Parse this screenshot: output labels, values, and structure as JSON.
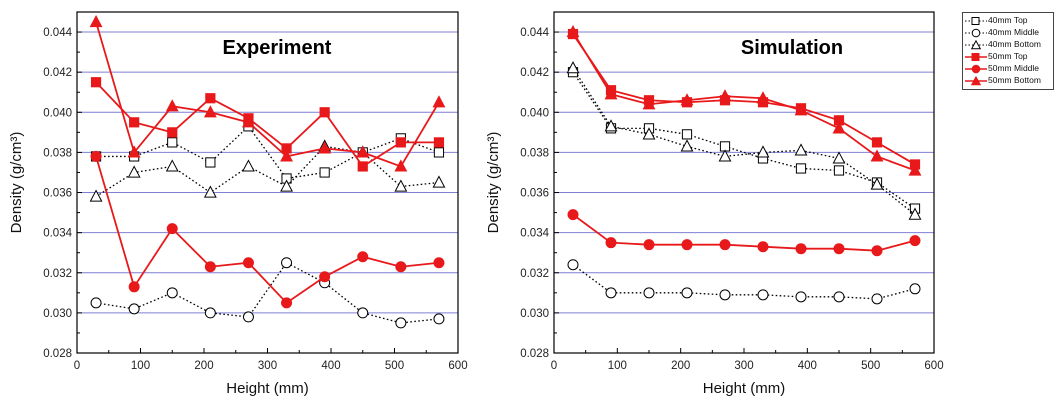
{
  "colors": {
    "top_40": "#000000",
    "middle_40": "#000000",
    "bottom_40": "#000000",
    "series_50": "#e8191b",
    "gridline": "#7f7fd4"
  },
  "legend": {
    "position": "top-right",
    "items": [
      {
        "label": "40mm Top",
        "marker": "square-open",
        "line": "dotted",
        "color": "#000000"
      },
      {
        "label": "40mm Middle",
        "marker": "circle-open",
        "line": "dotted",
        "color": "#000000"
      },
      {
        "label": "40mm Bottom",
        "marker": "triangle-open",
        "line": "dotted",
        "color": "#000000"
      },
      {
        "label": "50mm Top",
        "marker": "square-filled",
        "line": "solid",
        "color": "#e8191b"
      },
      {
        "label": "50mm Middle",
        "marker": "circle-filled",
        "line": "solid",
        "color": "#e8191b"
      },
      {
        "label": "50mm Bottom",
        "marker": "triangle-filled",
        "line": "solid",
        "color": "#e8191b"
      }
    ]
  },
  "chart_data": [
    {
      "type": "line",
      "title": "Experiment",
      "xlabel": "Height (mm)",
      "ylabel": "Density (g/cm³)",
      "xlim": [
        0,
        600
      ],
      "ylim": [
        0.028,
        0.045
      ],
      "xticks": [
        "0",
        "100",
        "200",
        "300",
        "400",
        "500",
        "600"
      ],
      "yticks": [
        "0.028",
        "0.030",
        "0.032",
        "0.034",
        "0.036",
        "0.038",
        "0.040",
        "0.042",
        "0.044"
      ],
      "grid": "horizontal",
      "x": [
        30,
        90,
        150,
        210,
        270,
        330,
        390,
        450,
        510,
        570
      ],
      "series": [
        {
          "name": "40mm Top",
          "values": [
            0.0378,
            0.0378,
            0.0385,
            0.0375,
            0.0393,
            0.0367,
            0.037,
            0.038,
            0.0387,
            0.038
          ]
        },
        {
          "name": "40mm Middle",
          "values": [
            0.0305,
            0.0302,
            0.031,
            0.03,
            0.0298,
            0.0325,
            0.0315,
            0.03,
            0.0295,
            0.0297
          ]
        },
        {
          "name": "40mm Bottom",
          "values": [
            0.0358,
            0.037,
            0.0373,
            0.036,
            0.0373,
            0.0363,
            0.0383,
            0.038,
            0.0363,
            0.0365
          ]
        },
        {
          "name": "50mm Top",
          "values": [
            0.0415,
            0.0395,
            0.039,
            0.0407,
            0.0397,
            0.0382,
            0.04,
            0.0373,
            0.0385,
            0.0385
          ]
        },
        {
          "name": "50mm Middle",
          "values": [
            0.0378,
            0.0313,
            0.0342,
            0.0323,
            0.0325,
            0.0305,
            0.0318,
            0.0328,
            0.0323,
            0.0325
          ]
        },
        {
          "name": "50mm Bottom",
          "values": [
            0.0445,
            0.038,
            0.0403,
            0.04,
            0.0395,
            0.0378,
            0.0382,
            0.038,
            0.0373,
            0.0405
          ]
        }
      ]
    },
    {
      "type": "line",
      "title": "Simulation",
      "xlabel": "Height (mm)",
      "ylabel": "Density (g/cm³)",
      "xlim": [
        0,
        600
      ],
      "ylim": [
        0.028,
        0.045
      ],
      "xticks": [
        "0",
        "100",
        "200",
        "300",
        "400",
        "500",
        "600"
      ],
      "yticks": [
        "0.028",
        "0.030",
        "0.032",
        "0.034",
        "0.036",
        "0.038",
        "0.040",
        "0.042",
        "0.044"
      ],
      "grid": "horizontal",
      "x": [
        30,
        90,
        150,
        210,
        270,
        330,
        390,
        450,
        510,
        570
      ],
      "series": [
        {
          "name": "40mm Top",
          "values": [
            0.042,
            0.0392,
            0.0392,
            0.0389,
            0.0383,
            0.0377,
            0.0372,
            0.0371,
            0.0365,
            0.0352
          ]
        },
        {
          "name": "40mm Middle",
          "values": [
            0.0324,
            0.031,
            0.031,
            0.031,
            0.0309,
            0.0309,
            0.0308,
            0.0308,
            0.0307,
            0.0312
          ]
        },
        {
          "name": "40mm Bottom",
          "values": [
            0.0422,
            0.0393,
            0.0389,
            0.0383,
            0.0378,
            0.038,
            0.0381,
            0.0377,
            0.0364,
            0.0349
          ]
        },
        {
          "name": "50mm Top",
          "values": [
            0.0439,
            0.0411,
            0.0406,
            0.0405,
            0.0406,
            0.0405,
            0.0402,
            0.0396,
            0.0385,
            0.0374
          ]
        },
        {
          "name": "50mm Middle",
          "values": [
            0.0349,
            0.0335,
            0.0334,
            0.0334,
            0.0334,
            0.0333,
            0.0332,
            0.0332,
            0.0331,
            0.0336
          ]
        },
        {
          "name": "50mm Bottom",
          "values": [
            0.044,
            0.0409,
            0.0404,
            0.0406,
            0.0408,
            0.0407,
            0.0401,
            0.0392,
            0.0378,
            0.0371
          ]
        }
      ]
    }
  ]
}
